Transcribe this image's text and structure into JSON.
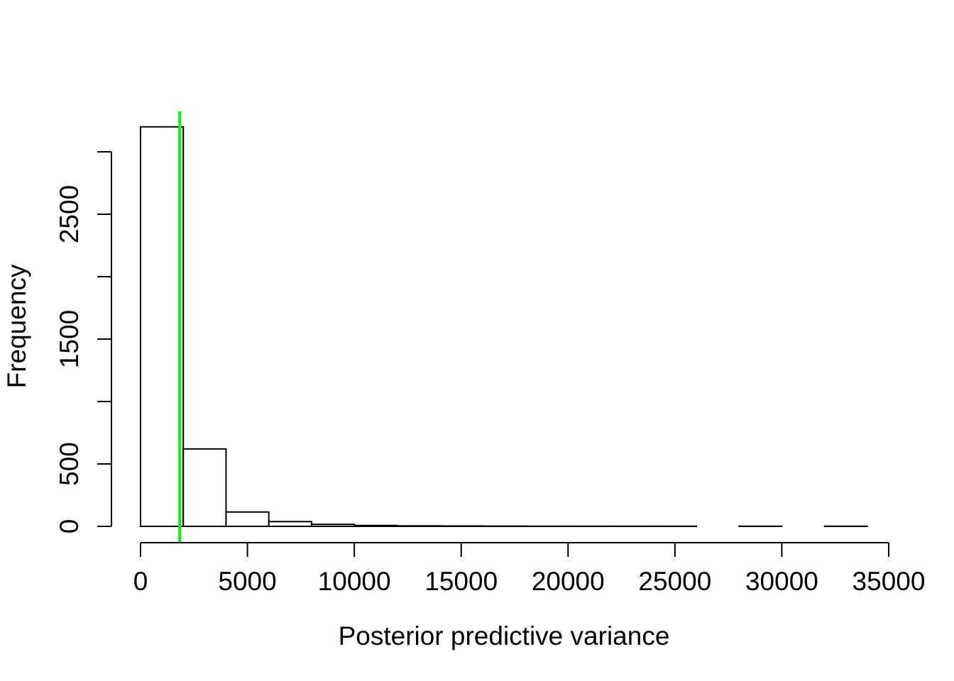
{
  "chart_data": {
    "type": "bar",
    "title": "",
    "xlabel": "Posterior predictive variance",
    "ylabel": "Frequency",
    "bin_edges": [
      0,
      2000,
      4000,
      6000,
      8000,
      10000,
      12000,
      14000,
      16000,
      18000,
      20000,
      22000,
      24000,
      26000,
      28000,
      30000,
      32000,
      34000
    ],
    "values": [
      3200,
      620,
      115,
      38,
      16,
      7,
      4,
      3,
      2,
      1,
      1,
      1,
      1,
      0,
      1,
      0,
      1
    ],
    "xlim": [
      0,
      35000
    ],
    "ylim": [
      0,
      3000
    ],
    "x_ticks": [
      0,
      5000,
      10000,
      15000,
      20000,
      25000,
      30000,
      35000
    ],
    "x_tick_labels": [
      "0",
      "5000",
      "10000",
      "15000",
      "20000",
      "25000",
      "30000",
      "35000"
    ],
    "y_ticks": [
      0,
      500,
      1000,
      1500,
      2000,
      2500,
      3000
    ],
    "y_tick_labels": [
      "0",
      "500",
      "",
      "1500",
      "",
      "2500",
      ""
    ],
    "reference_line": {
      "x": 1830,
      "color": "#00ff00"
    },
    "grid": false,
    "bar_fill": "#ffffff",
    "bar_stroke": "#000000"
  }
}
